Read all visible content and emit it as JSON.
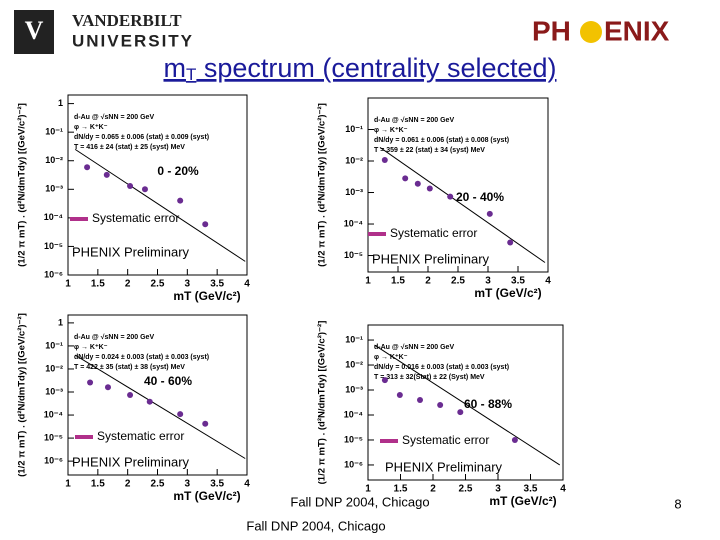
{
  "slide": {
    "logo_left_1": "VANDERBILT",
    "logo_left_2": "UNIVERSITY",
    "logo_right_1": "PH",
    "logo_right_2": "ENIX",
    "title_main": "m",
    "title_sub": "T",
    "title_rest": " spectrum (centrality selected)",
    "footer_1": "Fall DNP 2004, Chicago",
    "footer_2": "Fall DNP 2004, Chicago",
    "page_number": "8"
  },
  "chart_data": [
    {
      "type": "scatter",
      "log_y": true,
      "color": "#6a2c91",
      "legend_color": "#b0308a",
      "x_label": "mT (GeV/c²)",
      "y_label": "(1/2 π mT) . (d²N/dmTdy) [(GeV/c²)⁻²]",
      "annotations": [
        "d-Au @ √sNN = 200 GeV",
        "φ → K⁺K⁻",
        "dN/dy = 0.065 ± 0.006 (stat) ± 0.009 (syst)",
        "T = 416 ± 24 (stat) ± 25 (syst) MeV"
      ],
      "centrality": "0 - 20%",
      "legend_text": "Systematic error",
      "watermark": "PHENIX Preliminary",
      "x": [
        1.32,
        1.65,
        2.04,
        2.29,
        2.88,
        3.3
      ],
      "values": [
        0.0059,
        0.0032,
        0.0013,
        0.001,
        0.0004,
        6e-05
      ],
      "fit_x": [
        1.12,
        3.97
      ],
      "fit_values": [
        0.025,
        3e-06
      ],
      "xlim": [
        1,
        4
      ],
      "xticks": [
        1,
        1.5,
        2,
        2.5,
        3,
        3.5,
        4
      ],
      "ylim": [
        1e-06,
        2
      ],
      "yticks": [
        1,
        {
          "value": 0.1,
          "label": "10⁻¹"
        },
        {
          "value": 0.01,
          "label": "10⁻²"
        },
        {
          "value": 0.001,
          "label": "10⁻³"
        },
        {
          "value": 0.0001,
          "label": "10⁻⁴"
        },
        {
          "value": 1e-05,
          "label": "10⁻⁵"
        },
        {
          "value": 1e-06,
          "label": "10⁻⁶"
        }
      ]
    },
    {
      "type": "scatter",
      "log_y": true,
      "color": "#6a2c91",
      "legend_color": "#b0308a",
      "x_label": "mT (GeV/c²)",
      "y_label": "(1/2 π mT) . (d²N/dmTdy) [(GeV/c²)⁻²]",
      "annotations": [
        "d-Au @ √sNN = 200 GeV",
        "φ → K⁺K⁻",
        "dN/dy = 0.061 ± 0.006 (stat) ± 0.008 (syst)",
        "T = 359 ± 22 (stat) ± 34 (syst) MeV"
      ],
      "centrality": "20 - 40%",
      "legend_text": "Systematic error",
      "watermark": "PHENIX Preliminary",
      "x": [
        1.28,
        1.62,
        1.83,
        2.03,
        2.37,
        3.03,
        3.37
      ],
      "values": [
        0.0108,
        0.0028,
        0.0019,
        0.00134,
        0.00074,
        0.00021,
        2.6e-05
      ],
      "fit_x": [
        1.2,
        3.95
      ],
      "fit_values": [
        0.027,
        6e-06
      ],
      "xlim": [
        1,
        4
      ],
      "xticks": [
        1,
        1.5,
        2,
        2.5,
        3,
        3.5,
        4
      ],
      "ylim": [
        3e-06,
        1
      ],
      "yticks": [
        {
          "value": 0.1,
          "label": "10⁻¹"
        },
        {
          "value": 0.01,
          "label": "10⁻²"
        },
        {
          "value": 0.001,
          "label": "10⁻³"
        },
        {
          "value": 0.0001,
          "label": "10⁻⁴"
        },
        {
          "value": 1e-05,
          "label": "10⁻⁵"
        }
      ]
    },
    {
      "type": "scatter",
      "log_y": true,
      "color": "#6a2c91",
      "legend_color": "#b0308a",
      "x_label": "mT (GeV/c²)",
      "y_label": "(1/2 π mT) . (d²N/dmTdy) [(GeV/c²)⁻²]",
      "annotations": [
        "d-Au @ √sNN = 200 GeV",
        "φ → K⁺K⁻",
        "dN/dy = 0.024 ± 0.003 (stat) ± 0.003 (syst)",
        "T = 422 ± 35 (stat) ± 38 (syst) MeV"
      ],
      "centrality": "40 - 60%",
      "legend_text": "Systematic error",
      "watermark": "PHENIX Preliminary",
      "x": [
        1.37,
        1.67,
        2.04,
        2.37,
        2.88,
        3.3
      ],
      "values": [
        0.0026,
        0.0016,
        0.00074,
        0.00038,
        0.00011,
        4.2e-05
      ],
      "fit_x": [
        1.12,
        3.97
      ],
      "fit_values": [
        0.04,
        1.3e-06
      ],
      "xlim": [
        1,
        4
      ],
      "xticks": [
        1,
        1.5,
        2,
        2.5,
        3,
        3.5,
        4
      ],
      "ylim": [
        2.5e-07,
        2.2
      ],
      "yticks": [
        1,
        {
          "value": 0.1,
          "label": "10⁻¹"
        },
        {
          "value": 0.01,
          "label": "10⁻²"
        },
        {
          "value": 0.001,
          "label": "10⁻³"
        },
        {
          "value": 0.0001,
          "label": "10⁻⁴"
        },
        {
          "value": 1e-05,
          "label": "10⁻⁵"
        },
        {
          "value": 1e-06,
          "label": "10⁻⁶"
        }
      ]
    },
    {
      "type": "scatter",
      "log_y": true,
      "color": "#6a2c91",
      "legend_color": "#b0308a",
      "x_label": "mT (GeV/c²)",
      "y_label": "(1/2 π mT) . (d²N/dmTdy) [(GeV/c²)⁻²]",
      "annotations": [
        "d-Au @ √sNN = 200 GeV",
        "φ → K⁺K⁻",
        "dN/dy = 0.016 ± 0.003 (stat) ± 0.003 (syst)",
        "T = 313 ± 32(Stat) ± 22 (Syst) MeV"
      ],
      "centrality": "60 - 88%",
      "legend_text": "Systematic error",
      "watermark": "PHENIX Preliminary",
      "x": [
        1.26,
        1.49,
        1.8,
        2.11,
        2.42,
        3.26
      ],
      "values": [
        0.0025,
        0.00063,
        0.0004,
        0.00025,
        0.00013,
        1e-05
      ],
      "fit_x": [
        1.1,
        3.95
      ],
      "fit_values": [
        0.063,
        1e-06
      ],
      "xlim": [
        1,
        4
      ],
      "xticks": [
        1,
        1.5,
        2,
        2.5,
        3,
        3.5,
        4
      ],
      "ylim": [
        2.5e-07,
        0.4
      ],
      "yticks": [
        {
          "value": 0.1,
          "label": "10⁻¹"
        },
        {
          "value": 0.01,
          "label": "10⁻²"
        },
        {
          "value": 0.001,
          "label": "10⁻³"
        },
        {
          "value": 0.0001,
          "label": "10⁻⁴"
        },
        {
          "value": 1e-05,
          "label": "10⁻⁵"
        },
        {
          "value": 1e-06,
          "label": "10⁻⁶"
        }
      ]
    }
  ]
}
